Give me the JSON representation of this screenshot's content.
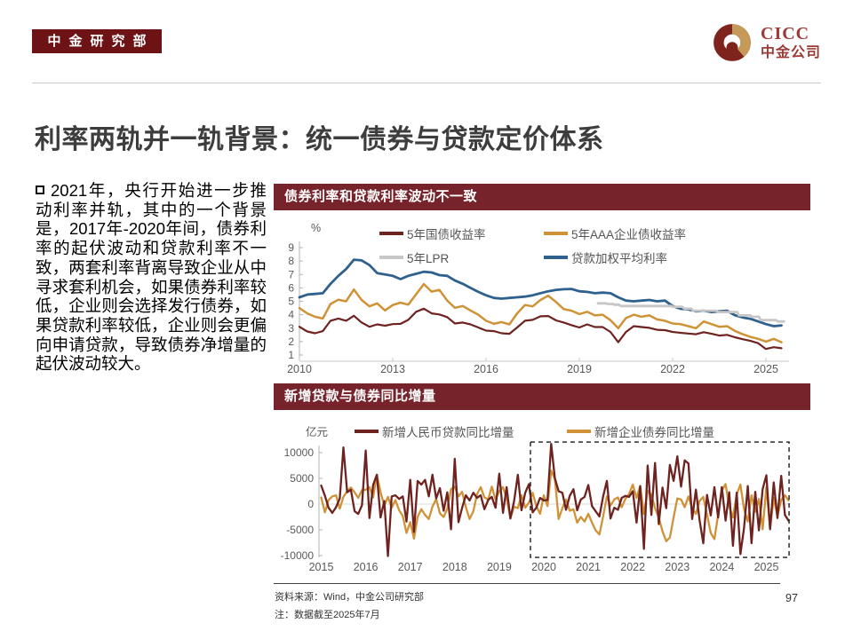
{
  "header": {
    "dept_badge": "中金研究部",
    "brand": "CICC",
    "brand_cn": "中金公司"
  },
  "title": "利率两轨并一轨背景：统一债券与贷款定价体系",
  "body": {
    "text": "2021年，央行开始进一步推动利率并轨，其中的一个背景是，2017年-2020年间，债券利率的起伏波动和贷款利率不一致，两套利率背离导致企业从中寻求套利机会，如果债券利率较低，企业则会选择发行债券，如果贷款利率较低，企业则会更偏向申请贷款，导致债券净增量的起伏波动较大。"
  },
  "footer": {
    "source": "资料来源：Wind，中金公司研究部",
    "note": "注：数据截至2025年7月",
    "page": "97"
  },
  "colors": {
    "badge_red": "#6d1316",
    "panel_header_red": "#76232b",
    "logo_red": "#9c3a35",
    "logo_ring_red": "#7f241c",
    "logo_ring_gold": "#c59a58",
    "series_dark_red": "#6f2320",
    "series_gold": "#cf9237",
    "series_gray": "#c7c7c7",
    "series_blue": "#2f618e"
  },
  "chart_data": [
    {
      "type": "line",
      "title": "债券利率和贷款利率波动不一致",
      "unit": "%",
      "xlim": [
        2010,
        2025.8
      ],
      "ylim": [
        1,
        9
      ],
      "x_ticks": [
        2010,
        2013,
        2016,
        2019,
        2022,
        2025
      ],
      "y_ticks": [
        1,
        2,
        3,
        4,
        5,
        6,
        7,
        8,
        9
      ],
      "grid": false,
      "legend_position": "top",
      "series": [
        {
          "name": "5年国债收益率",
          "color": "#6f2320",
          "x_start": 2010,
          "x_step": 0.25,
          "values": [
            3.1,
            2.75,
            2.62,
            2.78,
            3.55,
            3.72,
            3.55,
            3.92,
            3.42,
            3.1,
            3.28,
            3.18,
            3.3,
            3.32,
            3.62,
            4.22,
            4.45,
            4.1,
            4.02,
            3.82,
            3.35,
            3.42,
            3.28,
            3.05,
            2.82,
            2.78,
            2.62,
            2.58,
            3.05,
            3.55,
            3.62,
            3.88,
            3.9,
            3.58,
            3.42,
            3.22,
            3.05,
            3.28,
            3.08,
            3.08,
            2.72,
            1.95,
            2.72,
            3.15,
            3.08,
            3.02,
            2.88,
            2.85,
            2.72,
            2.65,
            2.6,
            2.55,
            2.7,
            2.58,
            2.45,
            2.5,
            2.32,
            2.18,
            2.05,
            1.88,
            1.45,
            1.58,
            1.5
          ]
        },
        {
          "name": "5年AAA企业债收益率",
          "color": "#cf9237",
          "x_start": 2010,
          "x_step": 0.25,
          "values": [
            4.5,
            4.1,
            3.85,
            3.72,
            4.8,
            5.12,
            5.0,
            5.88,
            5.1,
            4.62,
            4.85,
            4.32,
            4.72,
            4.9,
            4.75,
            5.52,
            6.28,
            5.72,
            5.85,
            5.05,
            4.52,
            4.65,
            4.32,
            4.0,
            3.55,
            3.32,
            3.45,
            3.28,
            4.1,
            4.72,
            4.62,
            5.1,
            5.42,
            4.95,
            4.42,
            4.3,
            4.05,
            4.22,
            3.95,
            4.0,
            3.6,
            3.0,
            3.75,
            4.0,
            3.85,
            3.95,
            3.65,
            3.55,
            3.35,
            3.3,
            3.15,
            3.0,
            3.5,
            3.3,
            3.1,
            3.15,
            2.8,
            2.55,
            2.35,
            2.2,
            2.0,
            2.2,
            1.95
          ]
        },
        {
          "name": "5年LPR",
          "color": "#c7c7c7",
          "points": [
            [
              2019.6,
              4.85
            ],
            [
              2019.87,
              4.85
            ],
            [
              2019.9,
              4.8
            ],
            [
              2020.08,
              4.8
            ],
            [
              2020.12,
              4.75
            ],
            [
              2020.28,
              4.75
            ],
            [
              2020.33,
              4.65
            ],
            [
              2021.95,
              4.65
            ],
            [
              2022.0,
              4.6
            ],
            [
              2022.3,
              4.6
            ],
            [
              2022.38,
              4.45
            ],
            [
              2022.6,
              4.45
            ],
            [
              2022.65,
              4.3
            ],
            [
              2023.4,
              4.3
            ],
            [
              2023.46,
              4.2
            ],
            [
              2024.08,
              4.2
            ],
            [
              2024.13,
              3.95
            ],
            [
              2024.5,
              3.95
            ],
            [
              2024.55,
              3.85
            ],
            [
              2024.78,
              3.85
            ],
            [
              2024.83,
              3.6
            ],
            [
              2025.33,
              3.6
            ],
            [
              2025.38,
              3.5
            ],
            [
              2025.58,
              3.5
            ]
          ]
        },
        {
          "name": "贷款加权平均利率",
          "color": "#2f618e",
          "x_start": 2010,
          "x_step": 0.25,
          "values": [
            5.3,
            5.5,
            5.55,
            5.6,
            6.3,
            6.9,
            7.4,
            8.1,
            8.05,
            7.7,
            7.1,
            7.0,
            6.9,
            6.65,
            6.9,
            7.05,
            7.2,
            7.15,
            6.95,
            6.9,
            6.55,
            6.3,
            6.0,
            5.7,
            5.45,
            5.25,
            5.2,
            5.25,
            5.3,
            5.35,
            5.45,
            5.6,
            5.75,
            5.85,
            5.9,
            5.92,
            5.75,
            5.7,
            5.6,
            5.65,
            5.6,
            5.3,
            5.05,
            5.0,
            5.05,
            5.1,
            5.0,
            5.05,
            4.65,
            4.45,
            4.4,
            4.25,
            4.3,
            4.2,
            4.25,
            4.3,
            3.97,
            3.8,
            3.7,
            3.5,
            3.3,
            3.15,
            3.2
          ]
        }
      ]
    },
    {
      "type": "line",
      "title": "新增贷款与债券同比增量",
      "unit": "亿元",
      "xlim": [
        2015,
        2025.7
      ],
      "ylim": [
        -10500,
        12000
      ],
      "x_ticks": [
        2015,
        2016,
        2017,
        2018,
        2019,
        2020,
        2021,
        2022,
        2023,
        2024,
        2025
      ],
      "y_ticks": [
        -10000,
        -5000,
        0,
        5000,
        10000
      ],
      "grid": false,
      "zero_line": true,
      "highlight_box": {
        "x_from": 2019.7,
        "x_to": 2025.51,
        "y_from": -10350,
        "y_to": 12050,
        "style": "dashed"
      },
      "legend_position": "top",
      "series": [
        {
          "name": "新增人民币贷款同比增量",
          "color": "#6f2320",
          "x_start": 2015,
          "x_step": 0.08333,
          "values": [
            3600,
            1600,
            -700,
            -1700,
            -600,
            1100,
            11000,
            2300,
            2800,
            -1400,
            -1900,
            -200,
            10400,
            -2700,
            3700,
            5700,
            -2600,
            600,
            -10100,
            1500,
            1700,
            1000,
            1500,
            -3400,
            4700,
            -5400,
            4500,
            3800,
            4700,
            1500,
            5700,
            1100,
            3100,
            -1300,
            2300,
            -4900,
            8800,
            -3500,
            -700,
            1700,
            700,
            2200,
            1200,
            1700,
            -1000,
            800,
            1400,
            -700,
            5900,
            -1700,
            3300,
            -2800,
            600,
            5700,
            -1200,
            2200,
            3900,
            -1600,
            -700,
            1200,
            700,
            800,
            11700,
            5000,
            2500,
            2200,
            -1100,
            1600,
            2900,
            -1200,
            900,
            1400,
            3700,
            -400,
            -1400,
            -2400,
            1500,
            4500,
            -2800,
            -700,
            -1100,
            1200,
            1600,
            1400,
            2500,
            -3600,
            3500,
            -8700,
            7500,
            -2100,
            8000,
            -3900,
            3200,
            -800,
            7600,
            4500,
            9300,
            3400,
            8500,
            7900,
            -2900,
            2800,
            -3100,
            -7600,
            1800,
            -2200,
            3300,
            -2600,
            3300,
            -3200,
            2300,
            -8100,
            2200,
            -9700,
            -4600,
            3500,
            -7600,
            2400,
            -5100,
            2900,
            5600,
            -4900,
            4200,
            -2700,
            5500,
            -2100,
            -3200
          ]
        },
        {
          "name": "新增企业债券同比增量",
          "color": "#cf9237",
          "x_start": 2015,
          "x_step": 0.08333,
          "values": [
            1300,
            -1600,
            800,
            1500,
            1700,
            -900,
            1400,
            2500,
            3200,
            2300,
            1200,
            2700,
            2800,
            3300,
            1300,
            5700,
            2300,
            -300,
            1400,
            -700,
            800,
            -1200,
            -2300,
            -5600,
            -3500,
            -6700,
            -2500,
            -1000,
            -2100,
            -2900,
            -500,
            1000,
            -1800,
            -2500,
            -900,
            2900,
            3400,
            1500,
            2400,
            -600,
            -2900,
            -1400,
            1900,
            3300,
            1300,
            900,
            3400,
            900,
            2500,
            3300,
            1100,
            -2700,
            -500,
            -800,
            1700,
            -700,
            300,
            2200,
            -400,
            -1900,
            1700,
            -400,
            6500,
            4900,
            -2900,
            -800,
            900,
            -1300,
            -1000,
            -3600,
            -2500,
            -3400,
            -1900,
            -3600,
            -5100,
            -5900,
            -2400,
            1500,
            -300,
            900,
            1300,
            -600,
            1000,
            2000,
            3800,
            1200,
            3500,
            -1900,
            2600,
            1800,
            -800,
            -2600,
            -5300,
            -7200,
            -6500,
            -2600,
            1100,
            900,
            -600,
            1500,
            -800,
            -1900,
            600,
            1400,
            -2000,
            -5600,
            -6800,
            -2100,
            2600,
            3900,
            -500,
            -2600,
            1900,
            3800,
            -1000,
            -3400,
            1700,
            -1500,
            1000,
            -4900,
            3300,
            -4700,
            1200,
            -2300,
            800,
            1700,
            700
          ]
        }
      ]
    }
  ]
}
